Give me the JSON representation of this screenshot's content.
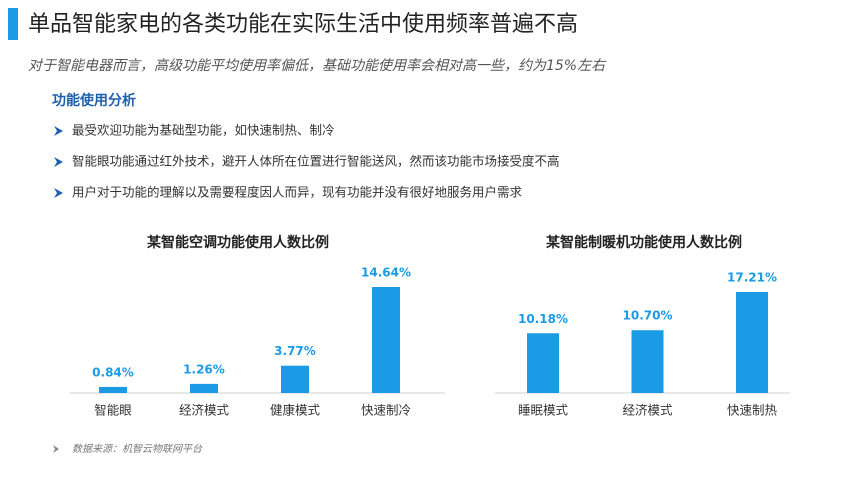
{
  "header": {
    "title": "单品智能家电的各类功能在实际生活中使用频率普遍不高",
    "subtitle": "对于智能电器而言，高级功能平均使用率偏低，基础功能使用率会相对高一些，约为15%左右"
  },
  "section": {
    "heading": "功能使用分析",
    "bullets": [
      "最受欢迎功能为基础型功能，如快速制热、制冷",
      "智能眼功能通过红外技术，避开人体所在位置进行智能送风，然而该功能市场接受度不高",
      "用户对于功能的理解以及需要程度因人而异，现有功能并没有很好地服务用户需求"
    ]
  },
  "chart_data": [
    {
      "type": "bar",
      "title": "某智能空调功能使用人数比例",
      "categories": [
        "智能眼",
        "经济模式",
        "健康模式",
        "快速制冷"
      ],
      "values": [
        0.84,
        1.26,
        3.77,
        14.64
      ],
      "value_labels": [
        "0.84%",
        "1.26%",
        "3.77%",
        "14.64%"
      ],
      "color": "#1b9be5"
    },
    {
      "type": "bar",
      "title": "某智能制暖机功能使用人数比例",
      "categories": [
        "睡眠模式",
        "经济模式",
        "快速制热"
      ],
      "values": [
        10.18,
        10.7,
        17.21
      ],
      "value_labels": [
        "10.18%",
        "10.70%",
        "17.21%"
      ],
      "color": "#1b9be5"
    }
  ],
  "source": "数据来源：机智云物联网平台"
}
